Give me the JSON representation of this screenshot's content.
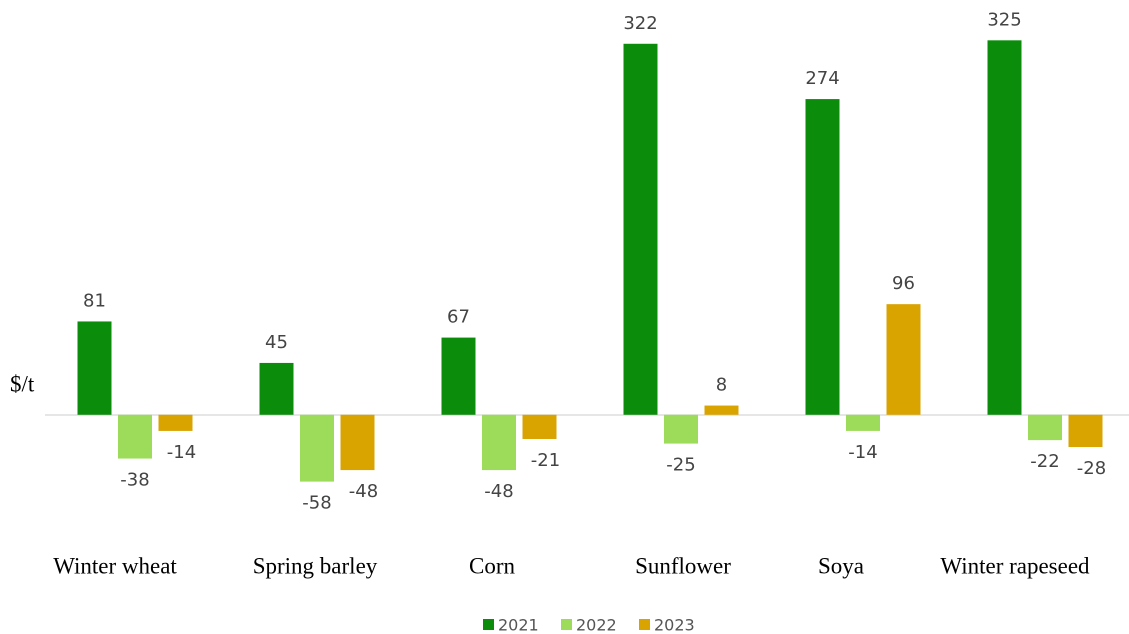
{
  "chart_data": {
    "type": "bar",
    "y_label": "$/t",
    "categories": [
      "Winter wheat",
      "Spring barley",
      "Corn",
      "Sunflower",
      "Soya",
      "Winter rapeseed"
    ],
    "series": [
      {
        "name": "2021",
        "color": "#0b8c0b",
        "values": [
          81,
          45,
          67,
          322,
          274,
          325
        ]
      },
      {
        "name": "2022",
        "color": "#9ddc5a",
        "values": [
          -38,
          -58,
          -48,
          -25,
          -14,
          -22
        ]
      },
      {
        "name": "2023",
        "color": "#d9a300",
        "values": [
          -14,
          -48,
          -21,
          8,
          96,
          -28
        ]
      }
    ],
    "ylim": [
      -100,
      360
    ],
    "legend": "bottom"
  }
}
